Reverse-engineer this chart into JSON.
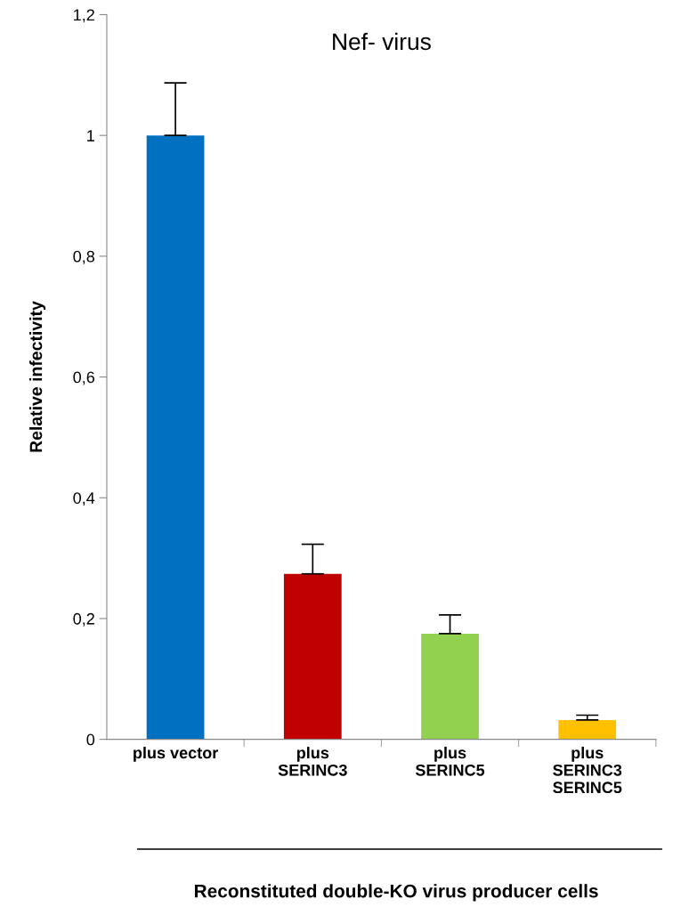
{
  "chart_data": {
    "type": "bar",
    "title": "Nef- virus",
    "categories": [
      "plus vector",
      "plus\nSERINC3",
      "plus\nSERINC5",
      "plus\nSERINC3\nSERINC5"
    ],
    "values": [
      1.0,
      0.274,
      0.175,
      0.032
    ],
    "colors": [
      "#0070c0",
      "#c00000",
      "#92d050",
      "#ffc000"
    ],
    "errors": [
      [
        1.0,
        1.087
      ],
      [
        0.274,
        0.323
      ],
      [
        0.175,
        0.206
      ],
      [
        0.032,
        0.04
      ]
    ],
    "ylabel": "Relative infectivity",
    "xlabel": "Reconstituted double-KO virus producer cells",
    "ylim": [
      0,
      1.2
    ],
    "yticks": [
      0,
      {
        "value": 0.2,
        "label": "0,2"
      },
      {
        "value": 0.4,
        "label": "0,4"
      },
      {
        "value": 0.6,
        "label": "0,6"
      },
      {
        "value": 0.8,
        "label": "0,8"
      },
      1,
      {
        "value": 1.2,
        "label": "1,2"
      }
    ],
    "grid": false
  }
}
